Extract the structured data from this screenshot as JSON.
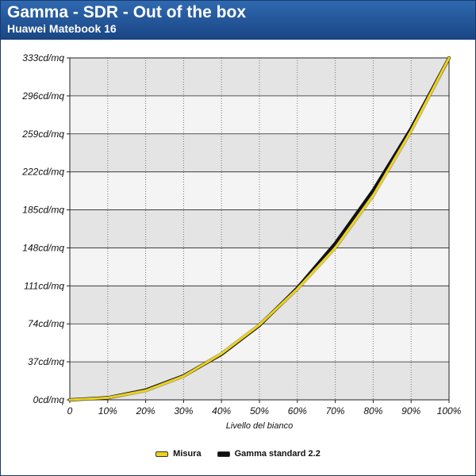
{
  "header": {
    "title": "Gamma - SDR - Out of the box",
    "subtitle": "Huawei Matebook 16"
  },
  "colors": {
    "header_top": "#2f69b0",
    "header_bottom": "#1a4684",
    "band_dark": "#e4e4e4",
    "band_light": "#f4f4f4",
    "measured": "#ecd21a",
    "reference": "#111111"
  },
  "chart_data": {
    "type": "line",
    "title": "Gamma - SDR - Out of the box",
    "subtitle": "Huawei Matebook 16",
    "xlabel": "Livello del bianco",
    "ylabel": "",
    "x_ticks": [
      "0",
      "10%",
      "20%",
      "30%",
      "40%",
      "50%",
      "60%",
      "70%",
      "80%",
      "90%",
      "100%"
    ],
    "y_ticks": [
      "0cd/mq",
      "37cd/mq",
      "74cd/mq",
      "111cd/mq",
      "148cd/mq",
      "185cd/mq",
      "222cd/mq",
      "259cd/mq",
      "296cd/mq",
      "333cd/mq"
    ],
    "xlim": [
      0,
      100
    ],
    "ylim": [
      0,
      333
    ],
    "grid": true,
    "legend_position": "bottom-center",
    "series": [
      {
        "name": "Misura",
        "color": "#ecd21a",
        "x": [
          0,
          10,
          20,
          30,
          40,
          50,
          60,
          70,
          80,
          90,
          100
        ],
        "values": [
          0,
          2,
          9,
          23,
          45,
          73,
          108,
          148,
          199,
          262,
          333
        ]
      },
      {
        "name": "Gamma standard 2.2",
        "color": "#111111",
        "x": [
          0,
          10,
          20,
          30,
          40,
          50,
          60,
          70,
          80,
          90,
          100
        ],
        "values": [
          0,
          2.1,
          9.6,
          23.5,
          44.3,
          72.4,
          109.0,
          152.4,
          204.1,
          264.4,
          333.0
        ]
      }
    ]
  }
}
